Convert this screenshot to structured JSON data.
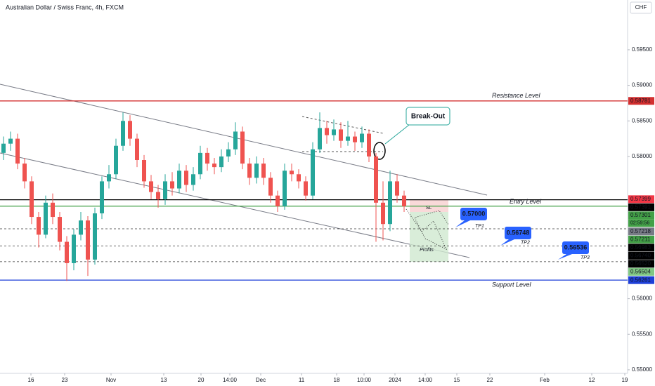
{
  "chart_data": {
    "type": "candlestick",
    "title": "Australian Dollar / Swiss Franc, 4h, FXCM",
    "currency": "CHF",
    "up_color": "#26a69a",
    "down_color": "#ef5350",
    "xlim": [
      0,
      89.3
    ],
    "xticks": [
      {
        "value": 4.4,
        "label": "16"
      },
      {
        "value": 9.2,
        "label": "23"
      },
      {
        "value": 15.8,
        "label": "Nov"
      },
      {
        "value": 23.3,
        "label": "13"
      },
      {
        "value": 28.6,
        "label": "20"
      },
      {
        "value": 32.7,
        "label": "14:00"
      },
      {
        "value": 37.1,
        "label": "Dec"
      },
      {
        "value": 42.9,
        "label": "11"
      },
      {
        "value": 47.9,
        "label": "18"
      },
      {
        "value": 51.8,
        "label": "10:00"
      },
      {
        "value": 56.2,
        "label": "2024"
      },
      {
        "value": 60.5,
        "label": "14:00"
      },
      {
        "value": 65.0,
        "label": "15"
      },
      {
        "value": 69.7,
        "label": "22"
      },
      {
        "value": 77.5,
        "label": "Feb"
      },
      {
        "value": 84.2,
        "label": "12"
      },
      {
        "value": 88.9,
        "label": "19"
      }
    ],
    "ylim": [
      0.5495,
      0.602
    ],
    "yticks": [
      {
        "value": 0.595,
        "label": "0.59500"
      },
      {
        "value": 0.59,
        "label": "0.59000"
      },
      {
        "value": 0.585,
        "label": "0.58500"
      },
      {
        "value": 0.58,
        "label": "0.58000"
      },
      {
        "value": 0.56,
        "label": "0.56000"
      },
      {
        "value": 0.555,
        "label": "0.55500"
      },
      {
        "value": 0.55,
        "label": "0.55000"
      }
    ],
    "x": [
      0.5,
      1.5,
      2.5,
      3.5,
      4.5,
      5.5,
      6.5,
      7.5,
      8.5,
      9.5,
      10.5,
      11.5,
      12.5,
      13.5,
      14.5,
      15.5,
      16.5,
      17.5,
      18.5,
      19.5,
      20.5,
      21.5,
      22.5,
      23.5,
      24.5,
      25.5,
      26.5,
      27.5,
      28.5,
      29.5,
      30.5,
      31.5,
      32.5,
      33.5,
      34.5,
      35.5,
      36.5,
      37.5,
      38.5,
      39.5,
      40.5,
      41.5,
      42.5,
      43.5,
      44.5,
      45.5,
      46.5,
      47.5,
      48.5,
      49.5,
      50.5,
      51.5,
      52.5,
      53.5,
      54.5,
      55.5,
      56.5,
      57.5
    ],
    "open": [
      0.5805,
      0.5818,
      0.5825,
      0.579,
      0.5765,
      0.5715,
      0.569,
      0.5735,
      0.5715,
      0.568,
      0.565,
      0.569,
      0.571,
      0.5655,
      0.572,
      0.5765,
      0.5775,
      0.5815,
      0.585,
      0.5825,
      0.5795,
      0.5765,
      0.575,
      0.574,
      0.5765,
      0.5755,
      0.578,
      0.576,
      0.5775,
      0.5805,
      0.579,
      0.5785,
      0.58,
      0.581,
      0.5835,
      0.579,
      0.577,
      0.579,
      0.577,
      0.5745,
      0.573,
      0.578,
      0.5775,
      0.5765,
      0.5745,
      0.581,
      0.584,
      0.583,
      0.5838,
      0.5822,
      0.5828,
      0.582,
      0.5832,
      0.58,
      0.5735,
      0.5705,
      0.5765,
      0.5745
    ],
    "high": [
      0.5828,
      0.5835,
      0.5832,
      0.5798,
      0.5772,
      0.5722,
      0.5745,
      0.5748,
      0.5722,
      0.5688,
      0.5698,
      0.5722,
      0.5716,
      0.5728,
      0.5772,
      0.5788,
      0.5825,
      0.5862,
      0.5858,
      0.5832,
      0.5802,
      0.5774,
      0.576,
      0.5775,
      0.5778,
      0.579,
      0.5788,
      0.5785,
      0.5815,
      0.5812,
      0.5798,
      0.581,
      0.582,
      0.5848,
      0.5842,
      0.5798,
      0.58,
      0.5798,
      0.5778,
      0.5752,
      0.579,
      0.579,
      0.5782,
      0.5772,
      0.582,
      0.5862,
      0.585,
      0.5852,
      0.5848,
      0.585,
      0.5835,
      0.5842,
      0.5838,
      0.5805,
      0.5765,
      0.578,
      0.5775,
      0.5752
    ],
    "low": [
      0.5795,
      0.5808,
      0.5782,
      0.5755,
      0.5705,
      0.5672,
      0.5685,
      0.5705,
      0.5668,
      0.5625,
      0.564,
      0.5682,
      0.5632,
      0.5648,
      0.5712,
      0.5755,
      0.5768,
      0.5808,
      0.5815,
      0.5785,
      0.5756,
      0.574,
      0.5728,
      0.5732,
      0.5745,
      0.5748,
      0.575,
      0.5752,
      0.5768,
      0.578,
      0.5775,
      0.5778,
      0.5792,
      0.5802,
      0.5782,
      0.576,
      0.5762,
      0.576,
      0.5735,
      0.5722,
      0.5725,
      0.5765,
      0.5755,
      0.5738,
      0.574,
      0.5805,
      0.5818,
      0.5822,
      0.5812,
      0.5815,
      0.5808,
      0.5812,
      0.5792,
      0.568,
      0.5682,
      0.5695,
      0.5735,
      0.5722
    ],
    "close": [
      0.5818,
      0.5825,
      0.579,
      0.5765,
      0.5715,
      0.569,
      0.5735,
      0.5715,
      0.568,
      0.565,
      0.569,
      0.571,
      0.5655,
      0.572,
      0.5765,
      0.5775,
      0.5815,
      0.585,
      0.5825,
      0.5795,
      0.5765,
      0.575,
      0.574,
      0.5765,
      0.5755,
      0.578,
      0.576,
      0.5775,
      0.5805,
      0.579,
      0.5785,
      0.58,
      0.581,
      0.5835,
      0.579,
      0.577,
      0.579,
      0.577,
      0.5745,
      0.573,
      0.578,
      0.5775,
      0.5765,
      0.5745,
      0.581,
      0.584,
      0.583,
      0.5838,
      0.5822,
      0.5828,
      0.582,
      0.5832,
      0.58,
      0.5735,
      0.5705,
      0.5765,
      0.5745,
      0.573
    ],
    "levels": [
      {
        "value": 0.58781,
        "color": "#d32f2f",
        "style": "solid",
        "name": "Resistance Level"
      },
      {
        "value": 0.57391,
        "color": "#000000",
        "style": "solid"
      },
      {
        "value": 0.57301,
        "color": "#43a047",
        "style": "solid",
        "name": "Entry Level"
      },
      {
        "value": 0.56983,
        "color": "#333333",
        "style": "dashed",
        "name": "TP1"
      },
      {
        "value": 0.5674,
        "color": "#333333",
        "style": "dashed",
        "name": "TP2"
      },
      {
        "value": 0.5652,
        "color": "#333333",
        "style": "dashed",
        "name": "TP3"
      },
      {
        "value": 0.56261,
        "color": "#1e3fd8",
        "style": "solid",
        "name": "Support Level"
      }
    ],
    "price_labels": [
      {
        "value": 0.58781,
        "label": "0.58781",
        "color": "#d32f2f"
      },
      {
        "value": 0.57399,
        "label": "0.57399",
        "color": "#f23645"
      },
      {
        "value": 0.57391,
        "label": "0.57391",
        "color": "#000000"
      },
      {
        "value": 0.57301,
        "label": "0.57301",
        "color": "#43a047"
      },
      {
        "value": 0.57218,
        "label": "0.57218",
        "color": "#787b86"
      },
      {
        "value": 0.57211,
        "label": "0.57211",
        "color": "#43a047"
      },
      {
        "value": 0.56983,
        "label": "0.56983",
        "color": "#000000"
      },
      {
        "value": 0.5674,
        "label": "0.56740",
        "color": "#000000"
      },
      {
        "value": 0.5652,
        "label": "0.56520",
        "color": "#000000"
      },
      {
        "value": 0.56504,
        "label": "0.56504",
        "color": "#81c784"
      },
      {
        "value": 0.56261,
        "label": "0.56261",
        "color": "#1e3fd8"
      }
    ],
    "countdown": "02:59:56",
    "callouts": [
      "0.57000",
      "0.56748",
      "0.56536"
    ],
    "annotations": {
      "breakout": "Break-Out",
      "sl": "SL",
      "profits": "Profits"
    }
  }
}
